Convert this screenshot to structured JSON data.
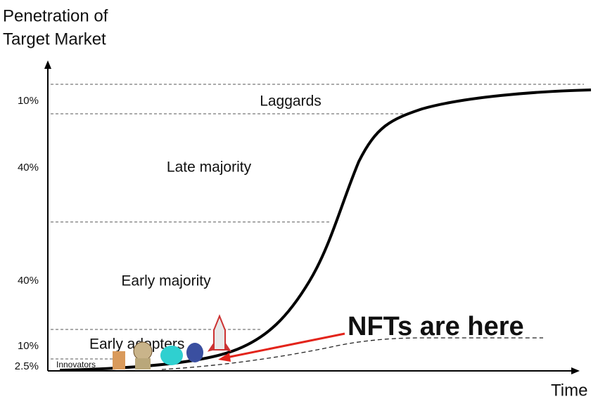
{
  "axis": {
    "y_title": [
      "Penetration of",
      "Target Market"
    ],
    "x_title": "Time"
  },
  "segments": [
    {
      "label": "Laggards",
      "share": "10%"
    },
    {
      "label": "Late majority",
      "share": "40%"
    },
    {
      "label": "Early majority",
      "share": "40%"
    },
    {
      "label": "Early adopters",
      "share": "10%"
    },
    {
      "label": "Innovators",
      "share": "2.5%"
    }
  ],
  "annotation": "NFTs are here"
}
